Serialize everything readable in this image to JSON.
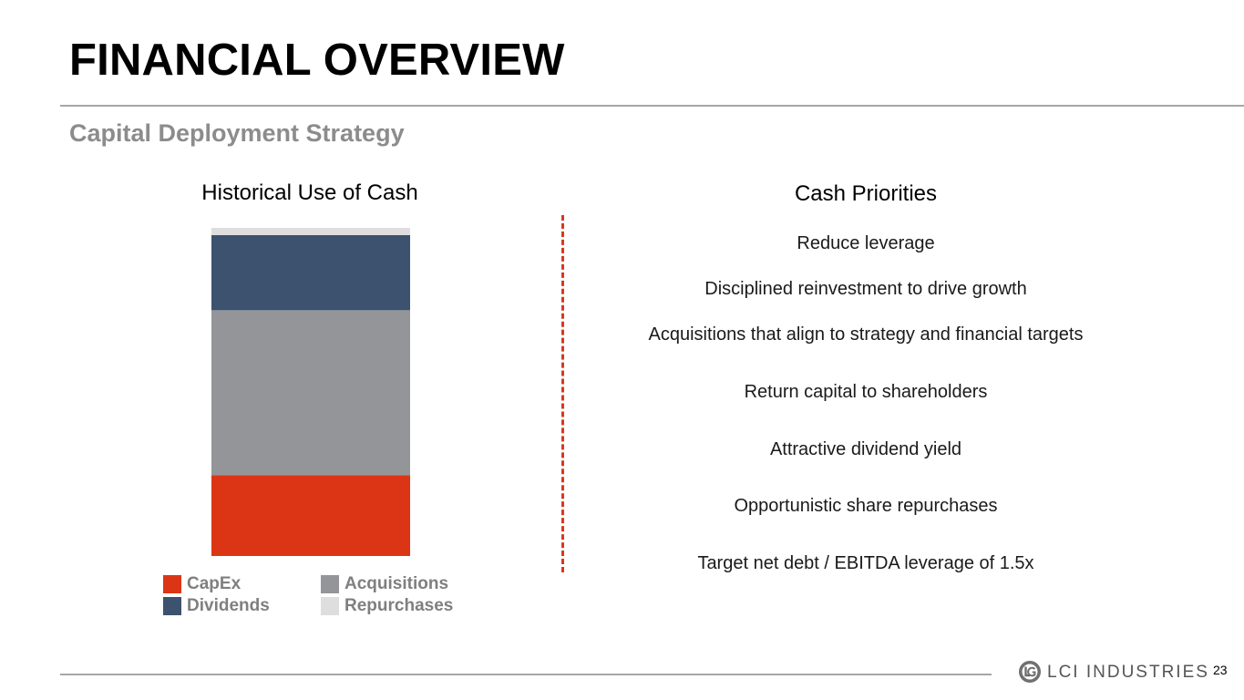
{
  "slide": {
    "title": "FINANCIAL OVERVIEW",
    "subtitle": "Capital Deployment Strategy",
    "page_number": "23",
    "company_name": "LCI INDUSTRIES",
    "logo_icon": "lci-logo-icon"
  },
  "colors": {
    "capex": "#dc3515",
    "acquisitions": "#939598",
    "dividends": "#3c526f",
    "repurchases": "#dedede",
    "divider": "#d9381e"
  },
  "chart_data": {
    "type": "bar",
    "stacked": true,
    "title": "Historical Use of Cash",
    "categories": [
      ""
    ],
    "series": [
      {
        "name": "CapEx",
        "values": [
          24.6
        ]
      },
      {
        "name": "Acquisitions",
        "values": [
          50.3
        ]
      },
      {
        "name": "Dividends",
        "values": [
          22.9
        ]
      },
      {
        "name": "Repurchases",
        "values": [
          2.2
        ]
      }
    ],
    "ylim": [
      0,
      100
    ],
    "grid": false,
    "axes_shown": false,
    "legend_position": "bottom",
    "legend": [
      {
        "label": "CapEx",
        "color": "#dc3515"
      },
      {
        "label": "Acquisitions",
        "color": "#939598"
      },
      {
        "label": "Dividends",
        "color": "#3c526f"
      },
      {
        "label": "Repurchases",
        "color": "#dedede"
      }
    ]
  },
  "priorities": {
    "title": "Cash Priorities",
    "items": [
      "Reduce leverage",
      "Disciplined reinvestment to drive growth",
      "Acquisitions that align to strategy and financial targets",
      "Return capital to shareholders",
      "Attractive dividend yield",
      "Opportunistic share repurchases",
      "Target net debt / EBITDA leverage of 1.5x"
    ]
  }
}
